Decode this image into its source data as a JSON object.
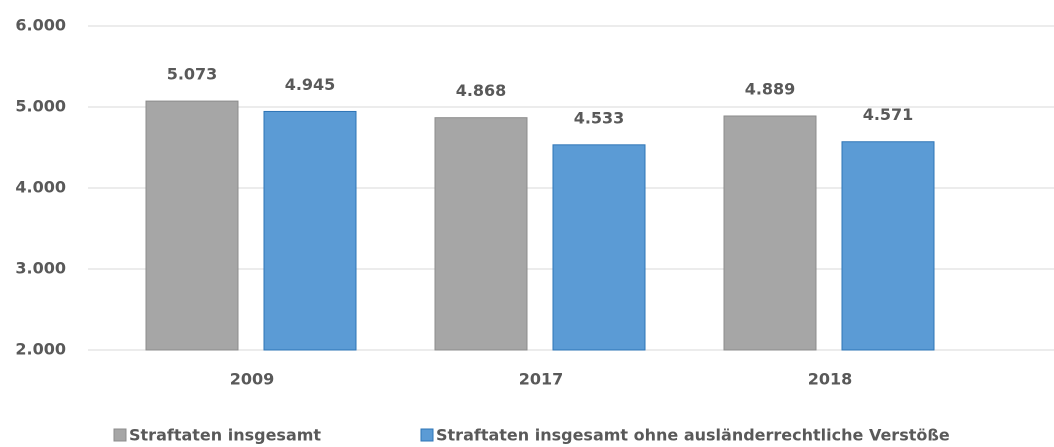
{
  "chart_data": {
    "type": "bar",
    "categories": [
      "2009",
      "2017",
      "2018"
    ],
    "series": [
      {
        "name": "Straftaten insgesamt",
        "color": "#a6a6a6",
        "label_color": "#404040",
        "values": [
          5073,
          4868,
          4889
        ],
        "value_labels": [
          "5.073",
          "4.868",
          "4.889"
        ]
      },
      {
        "name": "Straftaten insgesamt ohne ausländerrechtliche Verstöße",
        "color": "#5b9bd5",
        "label_color": "#1f3864",
        "values": [
          4945,
          4533,
          4571
        ],
        "value_labels": [
          "4.945",
          "4.533",
          "4.571"
        ]
      }
    ],
    "ylim": [
      2000,
      6000
    ],
    "yticks": [
      {
        "value": 2000,
        "label": "2.000"
      },
      {
        "value": 3000,
        "label": "3.000"
      },
      {
        "value": 4000,
        "label": "4.000"
      },
      {
        "value": 5000,
        "label": "5.000"
      },
      {
        "value": 6000,
        "label": "6.000"
      }
    ],
    "grid": true,
    "legend": "bottom"
  }
}
